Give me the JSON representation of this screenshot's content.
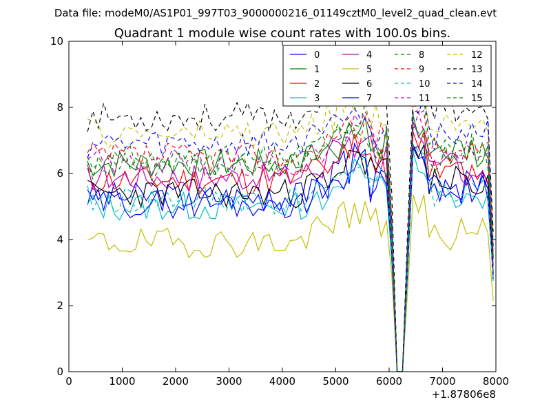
{
  "figure": {
    "suptitle": "Data file: modeM0/AS1P01_997T03_9000000216_01149cztM0_level2_quad_clean.evt"
  },
  "chart_data": {
    "type": "line",
    "title": "Quadrant 1 module wise count rates with 100.0s bins.",
    "xlabel": "",
    "ylabel": "",
    "xlim": [
      0,
      8000
    ],
    "ylim": [
      0,
      10
    ],
    "x_offset_label": "+1.87806e8",
    "xticks": [
      0,
      1000,
      2000,
      3000,
      4000,
      5000,
      6000,
      7000,
      8000
    ],
    "xtick_labels": [
      "0",
      "1000",
      "2000",
      "3000",
      "4000",
      "5000",
      "6000",
      "7000",
      "8000"
    ],
    "yticks": [
      0,
      2,
      4,
      6,
      8,
      10
    ],
    "ytick_labels": [
      "0",
      "2",
      "4",
      "6",
      "8",
      "10"
    ],
    "legend_position": "top-right",
    "series": [
      {
        "name": "0",
        "color": "#0000ff",
        "dash": "solid"
      },
      {
        "name": "1",
        "color": "#008000",
        "dash": "solid"
      },
      {
        "name": "2",
        "color": "#ff0000",
        "dash": "solid"
      },
      {
        "name": "3",
        "color": "#00bfbf",
        "dash": "solid"
      },
      {
        "name": "4",
        "color": "#bf00bf",
        "dash": "solid"
      },
      {
        "name": "5",
        "color": "#bfbf00",
        "dash": "solid"
      },
      {
        "name": "6",
        "color": "#000000",
        "dash": "solid"
      },
      {
        "name": "7",
        "color": "#0000ff",
        "dash": "solid"
      },
      {
        "name": "8",
        "color": "#008000",
        "dash": "dashed"
      },
      {
        "name": "9",
        "color": "#ff0000",
        "dash": "dashed"
      },
      {
        "name": "10",
        "color": "#00bfbf",
        "dash": "dashed"
      },
      {
        "name": "11",
        "color": "#bf00bf",
        "dash": "dashed"
      },
      {
        "name": "12",
        "color": "#bfbf00",
        "dash": "dashed"
      },
      {
        "name": "13",
        "color": "#000000",
        "dash": "dashed"
      },
      {
        "name": "14",
        "color": "#0000ff",
        "dash": "dashed"
      },
      {
        "name": "15",
        "color": "#008000",
        "dash": "dashed"
      }
    ],
    "profiles": [
      {
        "name": "0",
        "base": 5.3,
        "seed": 3
      },
      {
        "name": "1",
        "base": 6.3,
        "seed": 7
      },
      {
        "name": "2",
        "base": 5.8,
        "seed": 11
      },
      {
        "name": "3",
        "base": 5.0,
        "seed": 13
      },
      {
        "name": "4",
        "base": 5.9,
        "seed": 17
      },
      {
        "name": "5",
        "base": 3.9,
        "seed": 19
      },
      {
        "name": "6",
        "base": 5.4,
        "seed": 23
      },
      {
        "name": "7",
        "base": 5.1,
        "seed": 29
      },
      {
        "name": "8",
        "base": 6.4,
        "seed": 31
      },
      {
        "name": "9",
        "base": 6.5,
        "seed": 37
      },
      {
        "name": "10",
        "base": 5.2,
        "seed": 41
      },
      {
        "name": "11",
        "base": 6.3,
        "seed": 43
      },
      {
        "name": "12",
        "base": 7.2,
        "seed": 47
      },
      {
        "name": "13",
        "base": 7.7,
        "seed": 53
      },
      {
        "name": "14",
        "base": 6.9,
        "seed": 59
      },
      {
        "name": "15",
        "base": 6.2,
        "seed": 61
      }
    ],
    "time_sampling": {
      "start": 350,
      "end": 7950,
      "step": 100
    },
    "gap": {
      "drop_start": 6000,
      "zero_start": 6150,
      "zero_end": 6250,
      "recover_end": 6450
    }
  }
}
